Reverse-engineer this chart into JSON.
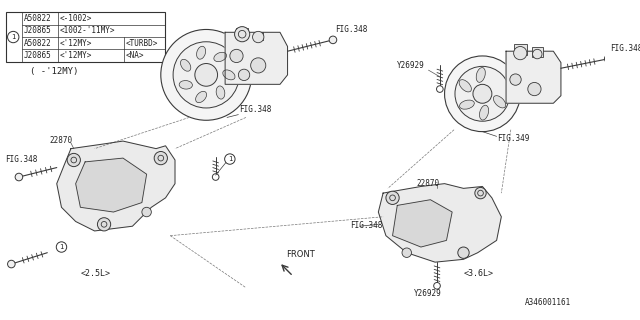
{
  "bg_color": "#ffffff",
  "line_color": "#3a3a3a",
  "part_number_footer": "A346001161",
  "table_rows": [
    [
      "A50822",
      "<-1002>",
      ""
    ],
    [
      "J20865",
      "<1002-'11MY>",
      ""
    ],
    [
      "A50822",
      "<'12MY>",
      "<TURBD>"
    ],
    [
      "J20865",
      "<'12MY>",
      "<NA>"
    ]
  ],
  "label_12my": "( -'12MY)",
  "label_25l": "<2.5L>",
  "label_36l": "<3.6L>",
  "label_front": "FRONT",
  "label_22870_left": "22870",
  "label_22870_right": "22870",
  "label_y26929_top": "Y26929",
  "label_y26929_bot": "Y26929",
  "fig348": "FIG.348",
  "fig349": "FIG.349"
}
